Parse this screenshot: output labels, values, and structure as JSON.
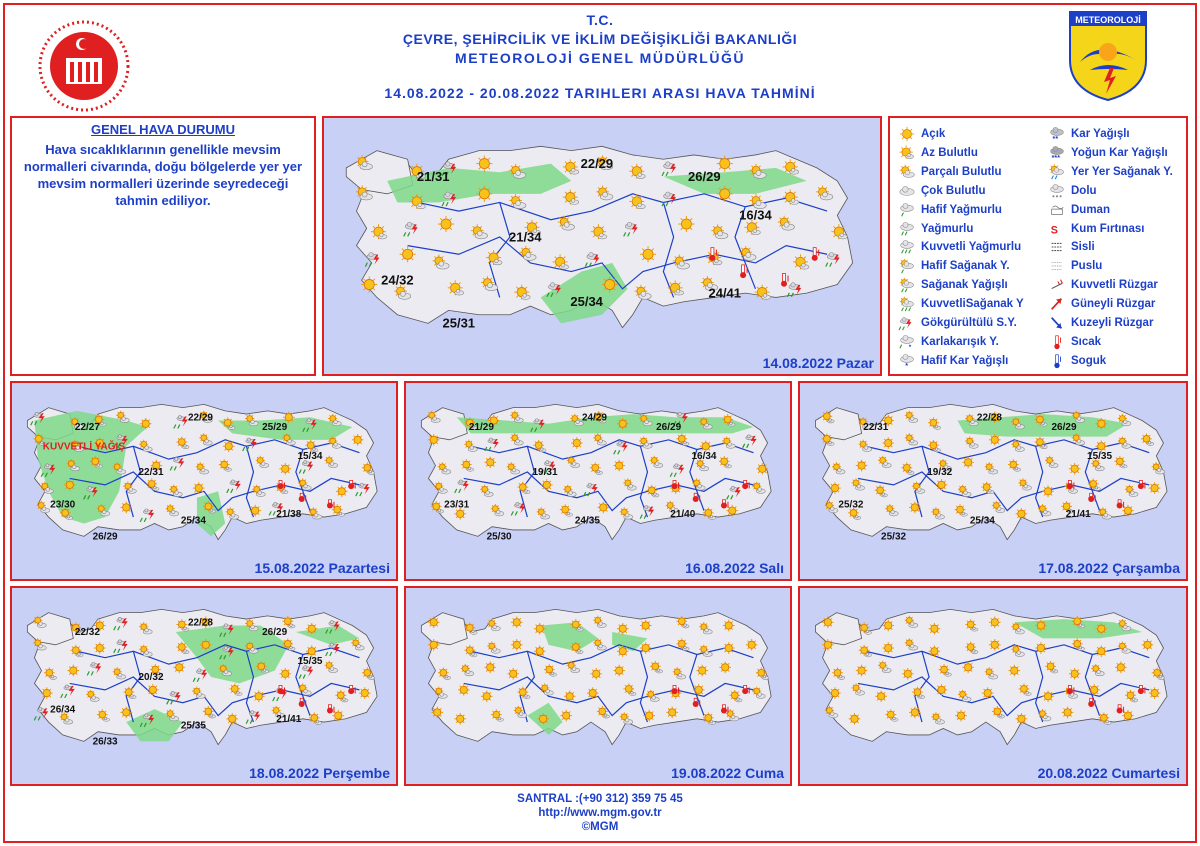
{
  "header": {
    "line1": "T.C.",
    "line2": "ÇEVRE, ŞEHİRCİLİK VE İKLİM DEĞİŞİKLİĞİ BAKANLIĞI",
    "line3": "METEOROLOJİ GENEL MÜDÜRLÜĞÜ",
    "line4": "14.08.2022 - 20.08.2022 TARIHLERI ARASI HAVA TAHMİNİ"
  },
  "logo_right_text": "METEOROLOJİ",
  "general": {
    "title": "GENEL HAVA DURUMU",
    "text": "Hava sıcaklıklarının genellikle mevsim normalleri civarında, doğu bölgelerde yer yer mevsim normalleri üzerinde seyredeceği tahmin ediliyor."
  },
  "legend": [
    {
      "label": "Açık",
      "icon": "sun-icon"
    },
    {
      "label": "Az Bulutlu",
      "icon": "sun-small-cloud-icon"
    },
    {
      "label": "Parçalı Bulutlu",
      "icon": "partly-cloudy-icon"
    },
    {
      "label": "Çok Bulutlu",
      "icon": "cloud-icon"
    },
    {
      "label": "Hafif Yağmurlu",
      "icon": "light-rain-icon"
    },
    {
      "label": "Yağmurlu",
      "icon": "rain-icon"
    },
    {
      "label": "Kuvvetli Yağmurlu",
      "icon": "heavy-rain-icon"
    },
    {
      "label": "Hafif Sağanak Y.",
      "icon": "light-shower-icon"
    },
    {
      "label": "Sağanak Yağışlı",
      "icon": "shower-icon"
    },
    {
      "label": "KuvvetliSağanak Y",
      "icon": "heavy-shower-icon"
    },
    {
      "label": "Gökgürültülü S.Y.",
      "icon": "thunderstorm-icon"
    },
    {
      "label": "Karlakarışık Y.",
      "icon": "sleet-icon"
    },
    {
      "label": "Hafif Kar Yağışlı",
      "icon": "light-snow-icon"
    },
    {
      "label": "Kar Yağışlı",
      "icon": "snow-icon"
    },
    {
      "label": "Yoğun Kar Yağışlı",
      "icon": "heavy-snow-icon"
    },
    {
      "label": "Yer Yer Sağanak Y.",
      "icon": "local-shower-icon"
    },
    {
      "label": "Dolu",
      "icon": "hail-icon"
    },
    {
      "label": "Duman",
      "icon": "smoke-icon"
    },
    {
      "label": "Kum Fırtınası",
      "icon": "sandstorm-icon"
    },
    {
      "label": "Sisli",
      "icon": "fog-icon"
    },
    {
      "label": "Puslu",
      "icon": "haze-icon"
    },
    {
      "label": "Kuvvetli Rüzgar",
      "icon": "strong-wind-icon"
    },
    {
      "label": "Güneyli Rüzgar",
      "icon": "south-wind-arrow-icon"
    },
    {
      "label": "Kuzeyli Rüzgar",
      "icon": "north-wind-arrow-icon"
    },
    {
      "label": "Sıcak",
      "icon": "hot-thermometer-icon"
    },
    {
      "label": "Soguk",
      "icon": "cold-thermometer-icon"
    }
  ],
  "maps": [
    {
      "date": "14.08.2022 Pazar",
      "temps": [
        {
          "t": "21/31",
          "region": "marmara"
        },
        {
          "t": "22/29",
          "region": "west-blacksea"
        },
        {
          "t": "26/29",
          "region": "east-blacksea"
        },
        {
          "t": "21/34",
          "region": "central"
        },
        {
          "t": "16/34",
          "region": "east"
        },
        {
          "t": "24/32",
          "region": "aegean"
        },
        {
          "t": "25/31",
          "region": "west-med"
        },
        {
          "t": "25/34",
          "region": "east-med"
        },
        {
          "t": "24/41",
          "region": "southeast"
        }
      ]
    },
    {
      "date": "15.08.2022 Pazartesi",
      "note": "KUVVETLİ YAĞIŞ",
      "temps": [
        {
          "t": "22/27",
          "region": "marmara"
        },
        {
          "t": "22/29",
          "region": "west-blacksea"
        },
        {
          "t": "25/29",
          "region": "east-blacksea"
        },
        {
          "t": "22/31",
          "region": "central"
        },
        {
          "t": "15/34",
          "region": "east"
        },
        {
          "t": "23/30",
          "region": "aegean"
        },
        {
          "t": "26/29",
          "region": "west-med"
        },
        {
          "t": "25/34",
          "region": "east-med"
        },
        {
          "t": "21/38",
          "region": "southeast"
        }
      ]
    },
    {
      "date": "16.08.2022 Salı",
      "temps": [
        {
          "t": "21/29",
          "region": "marmara"
        },
        {
          "t": "24/29",
          "region": "west-blacksea"
        },
        {
          "t": "26/29",
          "region": "east-blacksea"
        },
        {
          "t": "19/31",
          "region": "central"
        },
        {
          "t": "16/34",
          "region": "east"
        },
        {
          "t": "23/31",
          "region": "aegean"
        },
        {
          "t": "25/30",
          "region": "west-med"
        },
        {
          "t": "24/35",
          "region": "east-med"
        },
        {
          "t": "21/40",
          "region": "southeast"
        }
      ]
    },
    {
      "date": "17.08.2022 Çarşamba",
      "temps": [
        {
          "t": "22/31",
          "region": "marmara"
        },
        {
          "t": "22/28",
          "region": "west-blacksea"
        },
        {
          "t": "26/29",
          "region": "east-blacksea"
        },
        {
          "t": "19/32",
          "region": "central"
        },
        {
          "t": "15/35",
          "region": "east"
        },
        {
          "t": "25/32",
          "region": "aegean"
        },
        {
          "t": "25/32",
          "region": "west-med"
        },
        {
          "t": "25/34",
          "region": "east-med"
        },
        {
          "t": "21/41",
          "region": "southeast"
        }
      ]
    },
    {
      "date": "18.08.2022 Perşembe",
      "temps": [
        {
          "t": "22/32",
          "region": "marmara"
        },
        {
          "t": "22/28",
          "region": "west-blacksea"
        },
        {
          "t": "26/29",
          "region": "east-blacksea"
        },
        {
          "t": "20/32",
          "region": "central"
        },
        {
          "t": "15/35",
          "region": "east"
        },
        {
          "t": "26/34",
          "region": "aegean"
        },
        {
          "t": "26/33",
          "region": "west-med"
        },
        {
          "t": "25/35",
          "region": "east-med"
        },
        {
          "t": "21/41",
          "region": "southeast"
        }
      ]
    },
    {
      "date": "19.08.2022 Cuma",
      "temps": []
    },
    {
      "date": "20.08.2022 Cumartesi",
      "temps": []
    }
  ],
  "footer": {
    "phone": "SANTRAL :(+90 312) 359 75 45",
    "url": "http://www.mgm.gov.tr",
    "copy": "©MGM"
  },
  "colors": {
    "frame": "#e02020",
    "text": "#1d3fc7",
    "sea": "#c8d0f5",
    "land": "#ecebf1",
    "rain": "#7fd98a",
    "border": "#1d3fc7"
  }
}
